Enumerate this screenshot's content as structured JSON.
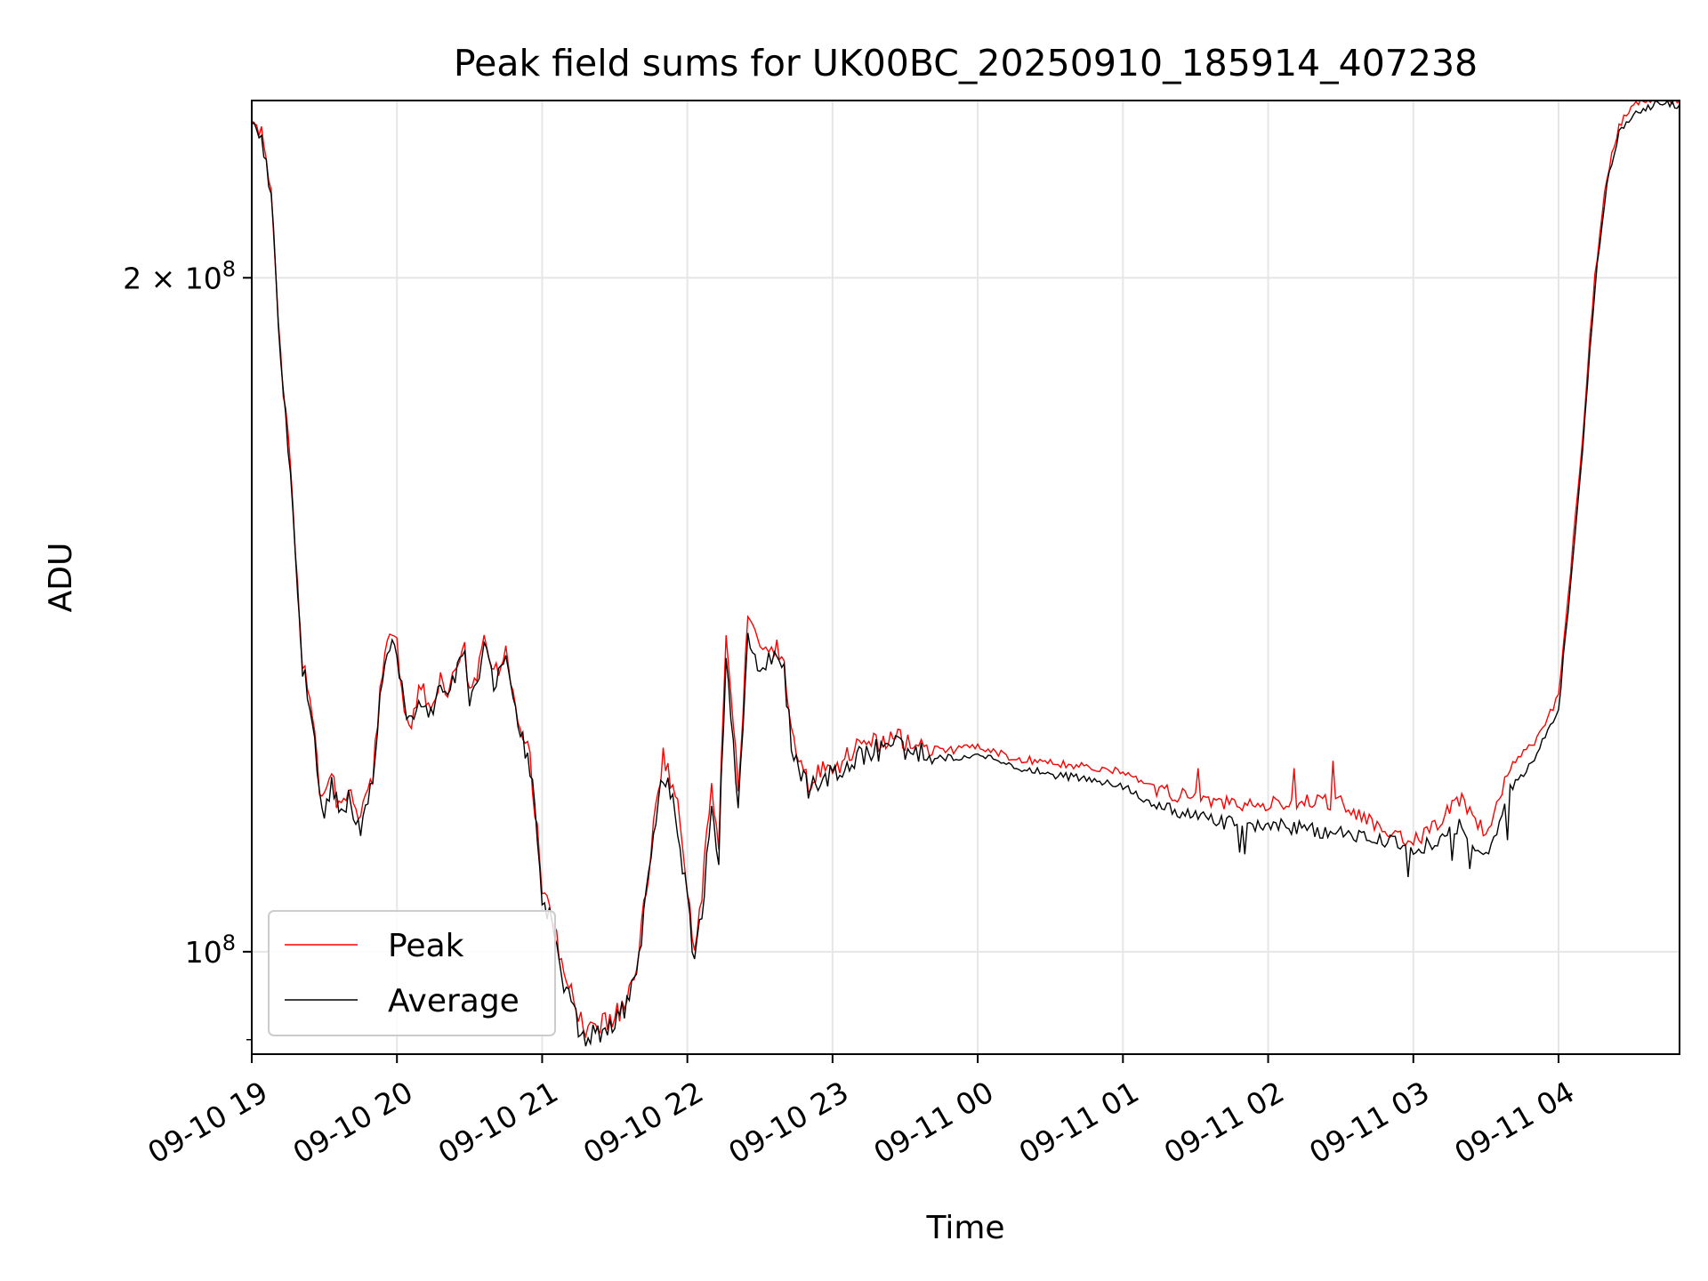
{
  "chart_data": {
    "type": "line",
    "title": "Peak field sums for UK00BC_20250910_185914_407238",
    "xlabel": "Time",
    "ylabel": "ADU",
    "yscale": "log",
    "ylim": [
      90000000.0,
      240000000.0
    ],
    "xlim": [
      "2025-09-10 19:00",
      "2025-09-11 04:50"
    ],
    "x_tick_labels": [
      "09-10 19",
      "09-10 20",
      "09-10 21",
      "09-10 22",
      "09-10 23",
      "09-11 00",
      "09-11 01",
      "09-11 02",
      "09-11 03",
      "09-11 04"
    ],
    "y_ticks": [
      {
        "value": 100000000,
        "label_base": "10",
        "label_exp": "8",
        "label_coef": ""
      },
      {
        "value": 200000000,
        "label_base": "10",
        "label_exp": "8",
        "label_coef": "2 × "
      }
    ],
    "grid": true,
    "legend_position": "lower-left",
    "series": [
      {
        "name": "Peak",
        "color": "#ff0000",
        "x": [
          "2025-09-10 19:00",
          "2025-09-10 19:05",
          "2025-09-10 19:08",
          "2025-09-10 19:10",
          "2025-09-10 19:13",
          "2025-09-10 19:15",
          "2025-09-10 19:18",
          "2025-09-10 19:21",
          "2025-09-10 19:25",
          "2025-09-10 19:28",
          "2025-09-10 19:30",
          "2025-09-10 19:33",
          "2025-09-10 19:36",
          "2025-09-10 19:40",
          "2025-09-10 19:45",
          "2025-09-10 19:48",
          "2025-09-10 19:50",
          "2025-09-10 19:53",
          "2025-09-10 19:56",
          "2025-09-10 20:00",
          "2025-09-10 20:03",
          "2025-09-10 20:06",
          "2025-09-10 20:10",
          "2025-09-10 20:15",
          "2025-09-10 20:18",
          "2025-09-10 20:21",
          "2025-09-10 20:25",
          "2025-09-10 20:28",
          "2025-09-10 20:30",
          "2025-09-10 20:33",
          "2025-09-10 20:36",
          "2025-09-10 20:40",
          "2025-09-10 20:45",
          "2025-09-10 20:50",
          "2025-09-10 20:55",
          "2025-09-10 21:00",
          "2025-09-10 21:03",
          "2025-09-10 21:06",
          "2025-09-10 21:10",
          "2025-09-10 21:13",
          "2025-09-10 21:16",
          "2025-09-10 21:20",
          "2025-09-10 21:23",
          "2025-09-10 21:26",
          "2025-09-10 21:30",
          "2025-09-10 21:35",
          "2025-09-10 21:40",
          "2025-09-10 21:45",
          "2025-09-10 21:50",
          "2025-09-10 21:55",
          "2025-09-10 22:00",
          "2025-09-10 22:03",
          "2025-09-10 22:06",
          "2025-09-10 22:10",
          "2025-09-10 22:13",
          "2025-09-10 22:16",
          "2025-09-10 22:18",
          "2025-09-10 22:21",
          "2025-09-10 22:25",
          "2025-09-10 22:30",
          "2025-09-10 22:36",
          "2025-09-10 22:40",
          "2025-09-10 22:43",
          "2025-09-10 22:46",
          "2025-09-10 22:50",
          "2025-09-10 22:55",
          "2025-09-10 23:00",
          "2025-09-10 23:05",
          "2025-09-10 23:10",
          "2025-09-10 23:13",
          "2025-09-10 23:16",
          "2025-09-10 23:20",
          "2025-09-10 23:25",
          "2025-09-10 23:30",
          "2025-09-10 23:40",
          "2025-09-10 23:50",
          "2025-09-11 00:00",
          "2025-09-11 00:15",
          "2025-09-11 00:30",
          "2025-09-11 00:45",
          "2025-09-11 01:00",
          "2025-09-11 01:15",
          "2025-09-11 01:30",
          "2025-09-11 01:45",
          "2025-09-11 02:00",
          "2025-09-11 02:15",
          "2025-09-11 02:30",
          "2025-09-11 02:45",
          "2025-09-11 03:00",
          "2025-09-11 03:10",
          "2025-09-11 03:15",
          "2025-09-11 03:20",
          "2025-09-11 03:30",
          "2025-09-11 03:40",
          "2025-09-11 03:50",
          "2025-09-11 04:00",
          "2025-09-11 04:05",
          "2025-09-11 04:10",
          "2025-09-11 04:15",
          "2025-09-11 04:20",
          "2025-09-11 04:25",
          "2025-09-11 04:30",
          "2025-09-11 04:35",
          "2025-09-11 04:40",
          "2025-09-11 04:45",
          "2025-09-11 04:50"
        ],
        "values": [
          236,
          230,
          220,
          200,
          178,
          170,
          150,
          135,
          128,
          118,
          117,
          120,
          116,
          118,
          115,
          117,
          120,
          131,
          138,
          137,
          129,
          127,
          131,
          129,
          132,
          130,
          135,
          137,
          130,
          132,
          138,
          133,
          136,
          127,
          122,
          107,
          105,
          101,
          97,
          95,
          93,
          92,
          92.5,
          93,
          93.5,
          95,
          100,
          111,
          122,
          118,
          107,
          100,
          106,
          118,
          112,
          137,
          130,
          118,
          140,
          136,
          137,
          135,
          126,
          122,
          119,
          120,
          121,
          122,
          123,
          123.5,
          124,
          124,
          124.5,
          124.3,
          123.5,
          123,
          123.5,
          122,
          121.5,
          121,
          120.3,
          118,
          117,
          116.5,
          116.5,
          116.8,
          116.5,
          114,
          112,
          114,
          116,
          117,
          113,
          121,
          124,
          130,
          148,
          170,
          200,
          222,
          234,
          238,
          240,
          240,
          240,
          240
        ]
      },
      {
        "name": "Average",
        "color": "#000000",
        "x": [
          "2025-09-10 19:00",
          "2025-09-10 19:05",
          "2025-09-10 19:08",
          "2025-09-10 19:10",
          "2025-09-10 19:13",
          "2025-09-10 19:15",
          "2025-09-10 19:18",
          "2025-09-10 19:21",
          "2025-09-10 19:25",
          "2025-09-10 19:28",
          "2025-09-10 19:30",
          "2025-09-10 19:33",
          "2025-09-10 19:36",
          "2025-09-10 19:40",
          "2025-09-10 19:45",
          "2025-09-10 19:48",
          "2025-09-10 19:50",
          "2025-09-10 19:53",
          "2025-09-10 19:56",
          "2025-09-10 20:00",
          "2025-09-10 20:03",
          "2025-09-10 20:06",
          "2025-09-10 20:10",
          "2025-09-10 20:15",
          "2025-09-10 20:18",
          "2025-09-10 20:21",
          "2025-09-10 20:25",
          "2025-09-10 20:28",
          "2025-09-10 20:30",
          "2025-09-10 20:33",
          "2025-09-10 20:36",
          "2025-09-10 20:40",
          "2025-09-10 20:45",
          "2025-09-10 20:50",
          "2025-09-10 20:55",
          "2025-09-10 21:00",
          "2025-09-10 21:03",
          "2025-09-10 21:06",
          "2025-09-10 21:10",
          "2025-09-10 21:13",
          "2025-09-10 21:16",
          "2025-09-10 21:20",
          "2025-09-10 21:23",
          "2025-09-10 21:26",
          "2025-09-10 21:30",
          "2025-09-10 21:35",
          "2025-09-10 21:40",
          "2025-09-10 21:45",
          "2025-09-10 21:50",
          "2025-09-10 21:55",
          "2025-09-10 22:00",
          "2025-09-10 22:03",
          "2025-09-10 22:06",
          "2025-09-10 22:10",
          "2025-09-10 22:13",
          "2025-09-10 22:16",
          "2025-09-10 22:18",
          "2025-09-10 22:21",
          "2025-09-10 22:25",
          "2025-09-10 22:30",
          "2025-09-10 22:36",
          "2025-09-10 22:40",
          "2025-09-10 22:43",
          "2025-09-10 22:46",
          "2025-09-10 22:50",
          "2025-09-10 22:55",
          "2025-09-10 23:00",
          "2025-09-10 23:05",
          "2025-09-10 23:10",
          "2025-09-10 23:13",
          "2025-09-10 23:16",
          "2025-09-10 23:20",
          "2025-09-10 23:25",
          "2025-09-10 23:30",
          "2025-09-10 23:40",
          "2025-09-10 23:50",
          "2025-09-11 00:00",
          "2025-09-11 00:15",
          "2025-09-11 00:30",
          "2025-09-11 00:45",
          "2025-09-11 01:00",
          "2025-09-11 01:15",
          "2025-09-11 01:30",
          "2025-09-11 01:45",
          "2025-09-11 02:00",
          "2025-09-11 02:15",
          "2025-09-11 02:30",
          "2025-09-11 02:45",
          "2025-09-11 03:00",
          "2025-09-11 03:10",
          "2025-09-11 03:15",
          "2025-09-11 03:20",
          "2025-09-11 03:30",
          "2025-09-11 03:40",
          "2025-09-11 03:50",
          "2025-09-11 04:00",
          "2025-09-11 04:05",
          "2025-09-11 04:10",
          "2025-09-11 04:15",
          "2025-09-11 04:20",
          "2025-09-11 04:25",
          "2025-09-11 04:30",
          "2025-09-11 04:35",
          "2025-09-11 04:40",
          "2025-09-11 04:45",
          "2025-09-11 04:50"
        ],
        "values": [
          235,
          229,
          219,
          199,
          177,
          169,
          149,
          134,
          127,
          117,
          116,
          119,
          115,
          117,
          114,
          116,
          119,
          130,
          137,
          136,
          128,
          126,
          130,
          128,
          131,
          129,
          134,
          136,
          129,
          131,
          137,
          132,
          135,
          126,
          121,
          106,
          104,
          100,
          96,
          94,
          92,
          91.5,
          92,
          92.5,
          93,
          94.5,
          99,
          110,
          120,
          116,
          105,
          99,
          104,
          116,
          110,
          135,
          128,
          116,
          138,
          134,
          135,
          133,
          124,
          121,
          118,
          119,
          120,
          121,
          122,
          122.5,
          123,
          123,
          123.5,
          123.3,
          122.5,
          122,
          122.5,
          121,
          120,
          119.5,
          118.5,
          116,
          115,
          114,
          114,
          113.5,
          113,
          112.5,
          111,
          112,
          113.5,
          114,
          110,
          118,
          122,
          128,
          146,
          168,
          198,
          220,
          232,
          236,
          238,
          239,
          239,
          239
        ]
      }
    ]
  }
}
